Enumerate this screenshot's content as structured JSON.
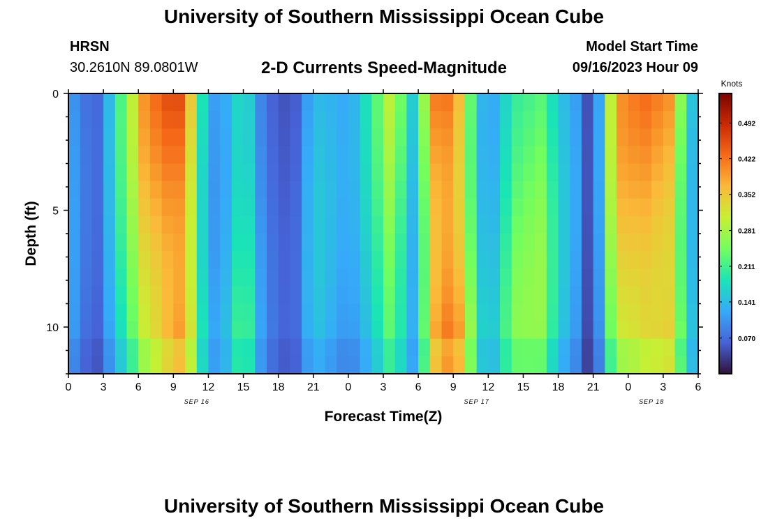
{
  "header": {
    "title": "University of Southern Mississippi Ocean Cube",
    "station": "HRSN",
    "coords": "30.2610N  89.0801W",
    "chart_title": "2-D Currents Speed-Magnitude",
    "model_label": "Model Start Time",
    "model_time": "09/16/2023 Hour 09"
  },
  "footer": {
    "title": "University of Southern Mississippi Ocean Cube"
  },
  "colors": {
    "stops": [
      "#30123b",
      "#4662d7",
      "#36aaf9",
      "#1ae4b6",
      "#72fe5e",
      "#c8ef34",
      "#faba39",
      "#f66b19",
      "#ca2a04",
      "#7a0403"
    ]
  },
  "chart_data": {
    "type": "heatmap",
    "xlabel": "Forecast Time(Z)",
    "ylabel": "Depth (ft)",
    "x_range_hours": [
      0,
      54
    ],
    "y_range_ft": [
      0,
      12
    ],
    "x_tick_labels": [
      "0",
      "3",
      "6",
      "9",
      "12",
      "15",
      "18",
      "21",
      "0",
      "3",
      "6",
      "9",
      "12",
      "15",
      "18",
      "21",
      "0",
      "3",
      "6"
    ],
    "y_tick_labels": [
      "0",
      "5",
      "10"
    ],
    "date_labels": [
      {
        "text": "SEP 16",
        "hour": 11
      },
      {
        "text": "SEP 17",
        "hour": 35
      },
      {
        "text": "SEP 18",
        "hour": 50
      }
    ],
    "colorbar": {
      "title": "Knots",
      "range": [
        0,
        0.55
      ],
      "tick_labels": [
        "0.492",
        "0.422",
        "0.352",
        "0.281",
        "0.211",
        "0.141",
        "0.070"
      ]
    },
    "time_profile_knots": [
      [
        0,
        0.13
      ],
      [
        1.5,
        0.08
      ],
      [
        2.5,
        0.07
      ],
      [
        3.5,
        0.14
      ],
      [
        4.5,
        0.22
      ],
      [
        5.5,
        0.3
      ],
      [
        6.5,
        0.4
      ],
      [
        8.5,
        0.48
      ],
      [
        9.5,
        0.5
      ],
      [
        10.5,
        0.4
      ],
      [
        11.5,
        0.22
      ],
      [
        12.5,
        0.14
      ],
      [
        13.5,
        0.16
      ],
      [
        14.5,
        0.22
      ],
      [
        15.5,
        0.21
      ],
      [
        16.5,
        0.12
      ],
      [
        18,
        0.06
      ],
      [
        19.5,
        0.07
      ],
      [
        21,
        0.16
      ],
      [
        22.5,
        0.14
      ],
      [
        24,
        0.12
      ],
      [
        25,
        0.15
      ],
      [
        26.5,
        0.23
      ],
      [
        27.5,
        0.3
      ],
      [
        28.5,
        0.25
      ],
      [
        29.5,
        0.17
      ],
      [
        30.5,
        0.3
      ],
      [
        31,
        0.45
      ],
      [
        32,
        0.5
      ],
      [
        33,
        0.5
      ],
      [
        34,
        0.4
      ],
      [
        35,
        0.2
      ],
      [
        36,
        0.15
      ],
      [
        37,
        0.18
      ],
      [
        38,
        0.26
      ],
      [
        40.5,
        0.27
      ],
      [
        42,
        0.17
      ],
      [
        43.5,
        0.12
      ],
      [
        44.5,
        0.05
      ],
      [
        45.5,
        0.12
      ],
      [
        46.5,
        0.3
      ],
      [
        47.5,
        0.4
      ],
      [
        49.5,
        0.44
      ],
      [
        51.5,
        0.44
      ],
      [
        52.5,
        0.3
      ],
      [
        53.5,
        0.18
      ],
      [
        54,
        0.12
      ]
    ]
  }
}
